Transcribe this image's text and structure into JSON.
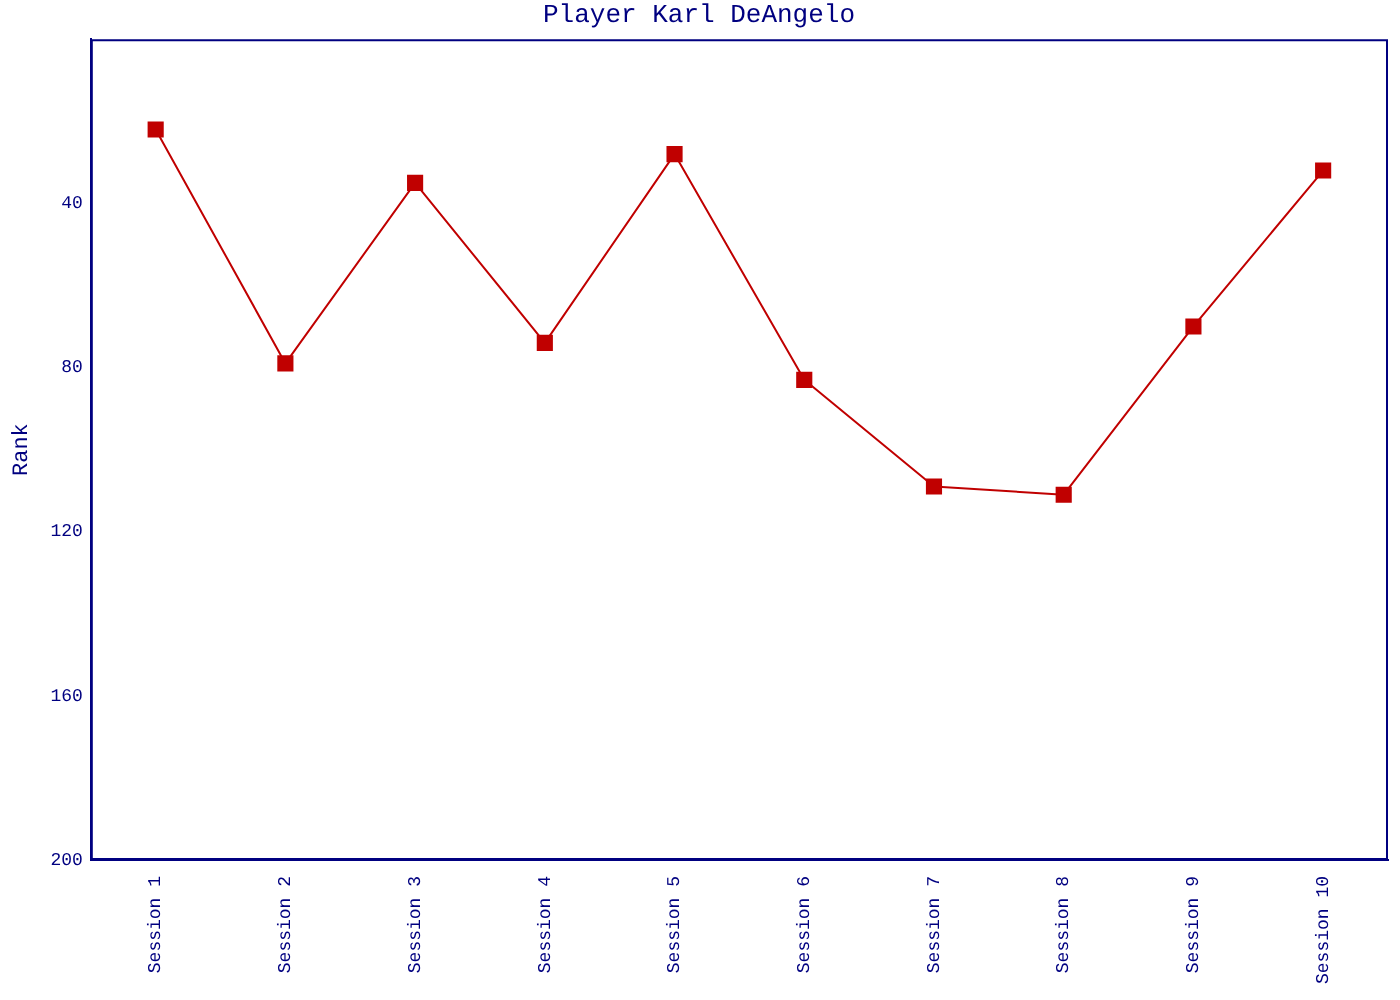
{
  "chart_data": {
    "type": "line",
    "title": "Player Karl DeAngelo",
    "ylabel": "Rank",
    "categories": [
      "Session 1",
      "Session 2",
      "Session 3",
      "Session 4",
      "Session 5",
      "Session 6",
      "Session 7",
      "Session 8",
      "Session 9",
      "Session 10"
    ],
    "series": [
      {
        "color": "#c00000",
        "values": [
          22,
          79,
          35,
          74,
          28,
          83,
          109,
          111,
          70,
          32
        ]
      }
    ],
    "ylim": [
      200,
      0
    ],
    "yticks": [
      40,
      80,
      120,
      160,
      200
    ],
    "grid": false,
    "legend": false,
    "marker": "square",
    "line_style": "solid"
  }
}
